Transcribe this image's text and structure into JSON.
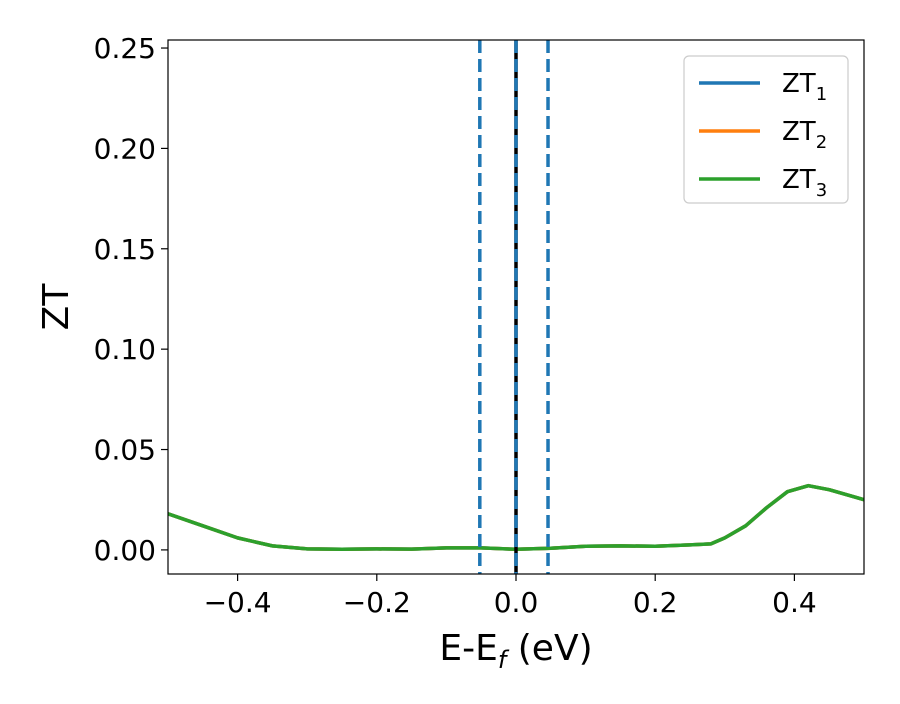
{
  "chart_data": {
    "type": "line",
    "title": "",
    "xlabel": {
      "main": "E-E",
      "sub": "f",
      "suffix": " (eV)"
    },
    "ylabel": "ZT",
    "xlim": [
      -0.5,
      0.5
    ],
    "ylim": [
      -0.012,
      0.254
    ],
    "xticks": [
      -0.4,
      -0.2,
      0.0,
      0.2,
      0.4
    ],
    "xtick_labels": [
      "−0.4",
      "−0.2",
      "0.0",
      "0.2",
      "0.4"
    ],
    "yticks": [
      0.0,
      0.05,
      0.1,
      0.15,
      0.2,
      0.25
    ],
    "ytick_labels": [
      "0.00",
      "0.05",
      "0.10",
      "0.15",
      "0.20",
      "0.25"
    ],
    "grid": false,
    "legend_position": "top-right",
    "x": [
      -0.5,
      -0.45,
      -0.4,
      -0.35,
      -0.3,
      -0.25,
      -0.2,
      -0.15,
      -0.1,
      -0.05,
      0.0,
      0.05,
      0.1,
      0.15,
      0.2,
      0.25,
      0.28,
      0.3,
      0.33,
      0.36,
      0.39,
      0.42,
      0.45,
      0.48,
      0.5
    ],
    "series": [
      {
        "name": "ZT",
        "sub": "1",
        "color": "#1f77b4",
        "values": [
          0.018,
          0.012,
          0.006,
          0.002,
          0.0005,
          0.0003,
          0.0005,
          0.0004,
          0.001,
          0.001,
          0.0003,
          0.0008,
          0.0018,
          0.002,
          0.0018,
          0.0025,
          0.003,
          0.006,
          0.012,
          0.021,
          0.029,
          0.032,
          0.03,
          0.027,
          0.025
        ]
      },
      {
        "name": "ZT",
        "sub": "2",
        "color": "#ff7f0e",
        "values": [
          0.018,
          0.012,
          0.006,
          0.002,
          0.0005,
          0.0003,
          0.0005,
          0.0004,
          0.001,
          0.001,
          0.0003,
          0.0008,
          0.0018,
          0.002,
          0.0018,
          0.0025,
          0.003,
          0.006,
          0.012,
          0.021,
          0.029,
          0.032,
          0.03,
          0.027,
          0.025
        ]
      },
      {
        "name": "ZT",
        "sub": "3",
        "color": "#2ca02c",
        "values": [
          0.018,
          0.012,
          0.006,
          0.002,
          0.0005,
          0.0003,
          0.0005,
          0.0004,
          0.001,
          0.001,
          0.0003,
          0.0008,
          0.0018,
          0.002,
          0.0018,
          0.0025,
          0.003,
          0.006,
          0.012,
          0.021,
          0.029,
          0.032,
          0.03,
          0.027,
          0.025
        ]
      }
    ],
    "vlines": [
      {
        "x": -0.052,
        "style": "dashed",
        "color": "#1f77b4"
      },
      {
        "x": 0.0,
        "style": "solid",
        "color": "#000000"
      },
      {
        "x": 0.0,
        "style": "dashed",
        "color": "#1f77b4"
      },
      {
        "x": 0.046,
        "style": "dashed",
        "color": "#1f77b4"
      }
    ]
  }
}
